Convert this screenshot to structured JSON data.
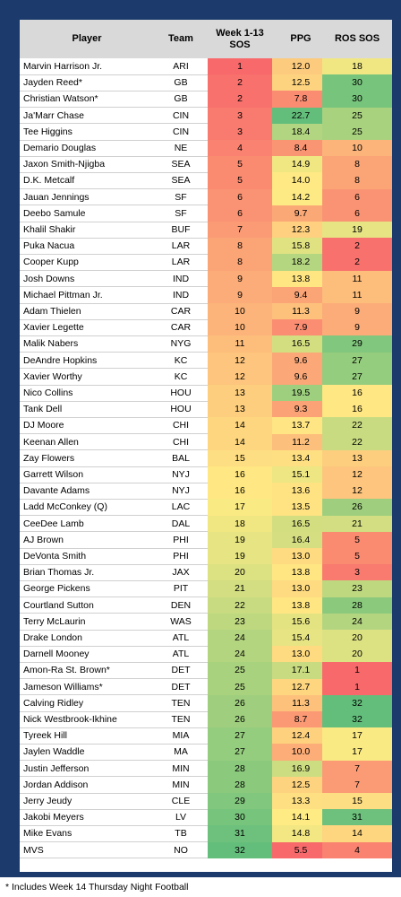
{
  "table": {
    "headers": {
      "player": "Player",
      "team": "Team",
      "sos_line1": "Week 1-13",
      "sos_line2": "SOS",
      "ppg": "PPG",
      "ros": "ROS SOS"
    }
  },
  "footnote": "* Includes Week 14 Thursday Night Football",
  "chart_data": {
    "type": "table",
    "columns": [
      "Player",
      "Team",
      "Week 1-13 SOS",
      "PPG",
      "ROS SOS"
    ],
    "rows": [
      [
        "Marvin Harrison Jr.",
        "ARI",
        "1",
        "12.0",
        "18"
      ],
      [
        "Jayden Reed*",
        "GB",
        "2",
        "12.5",
        "30"
      ],
      [
        "Christian Watson*",
        "GB",
        "2",
        "7.8",
        "30"
      ],
      [
        "Ja'Marr Chase",
        "CIN",
        "3",
        "22.7",
        "25"
      ],
      [
        "Tee Higgins",
        "CIN",
        "3",
        "18.4",
        "25"
      ],
      [
        "Demario Douglas",
        "NE",
        "4",
        "8.4",
        "10"
      ],
      [
        "Jaxon Smith-Njigba",
        "SEA",
        "5",
        "14.9",
        "8"
      ],
      [
        "D.K. Metcalf",
        "SEA",
        "5",
        "14.0",
        "8"
      ],
      [
        "Jauan Jennings",
        "SF",
        "6",
        "14.2",
        "6"
      ],
      [
        "Deebo Samule",
        "SF",
        "6",
        "9.7",
        "6"
      ],
      [
        "Khalil Shakir",
        "BUF",
        "7",
        "12.3",
        "19"
      ],
      [
        "Puka Nacua",
        "LAR",
        "8",
        "15.8",
        "2"
      ],
      [
        "Cooper Kupp",
        "LAR",
        "8",
        "18.2",
        "2"
      ],
      [
        "Josh Downs",
        "IND",
        "9",
        "13.8",
        "11"
      ],
      [
        "Michael Pittman Jr.",
        "IND",
        "9",
        "9.4",
        "11"
      ],
      [
        "Adam Thielen",
        "CAR",
        "10",
        "11.3",
        "9"
      ],
      [
        "Xavier Legette",
        "CAR",
        "10",
        "7.9",
        "9"
      ],
      [
        "Malik Nabers",
        "NYG",
        "11",
        "16.5",
        "29"
      ],
      [
        "DeAndre Hopkins",
        "KC",
        "12",
        "9.6",
        "27"
      ],
      [
        "Xavier Worthy",
        "KC",
        "12",
        "9.6",
        "27"
      ],
      [
        "Nico Collins",
        "HOU",
        "13",
        "19.5",
        "16"
      ],
      [
        "Tank Dell",
        "HOU",
        "13",
        "9.3",
        "16"
      ],
      [
        "DJ Moore",
        "CHI",
        "14",
        "13.7",
        "22"
      ],
      [
        "Keenan Allen",
        "CHI",
        "14",
        "11.2",
        "22"
      ],
      [
        "Zay Flowers",
        "BAL",
        "15",
        "13.4",
        "13"
      ],
      [
        "Garrett Wilson",
        "NYJ",
        "16",
        "15.1",
        "12"
      ],
      [
        "Davante Adams",
        "NYJ",
        "16",
        "13.6",
        "12"
      ],
      [
        "Ladd McConkey (Q)",
        "LAC",
        "17",
        "13.5",
        "26"
      ],
      [
        "CeeDee Lamb",
        "DAL",
        "18",
        "16.5",
        "21"
      ],
      [
        "AJ Brown",
        "PHI",
        "19",
        "16.4",
        "5"
      ],
      [
        "DeVonta Smith",
        "PHI",
        "19",
        "13.0",
        "5"
      ],
      [
        "Brian Thomas Jr.",
        "JAX",
        "20",
        "13.8",
        "3"
      ],
      [
        "George Pickens",
        "PIT",
        "21",
        "13.0",
        "23"
      ],
      [
        "Courtland Sutton",
        "DEN",
        "22",
        "13.8",
        "28"
      ],
      [
        "Terry McLaurin",
        "WAS",
        "23",
        "15.6",
        "24"
      ],
      [
        "Drake London",
        "ATL",
        "24",
        "15.4",
        "20"
      ],
      [
        "Darnell Mooney",
        "ATL",
        "24",
        "13.0",
        "20"
      ],
      [
        "Amon-Ra St. Brown*",
        "DET",
        "25",
        "17.1",
        "1"
      ],
      [
        "Jameson Williams*",
        "DET",
        "25",
        "12.7",
        "1"
      ],
      [
        "Calving Ridley",
        "TEN",
        "26",
        "11.3",
        "32"
      ],
      [
        "Nick Westbrook-Ikhine",
        "TEN",
        "26",
        "8.7",
        "32"
      ],
      [
        "Tyreek Hill",
        "MIA",
        "27",
        "12.4",
        "17"
      ],
      [
        "Jaylen Waddle",
        "MA",
        "27",
        "10.0",
        "17"
      ],
      [
        "Justin Jefferson",
        "MIN",
        "28",
        "16.9",
        "7"
      ],
      [
        "Jordan Addison",
        "MIN",
        "28",
        "12.5",
        "7"
      ],
      [
        "Jerry Jeudy",
        "CLE",
        "29",
        "13.3",
        "15"
      ],
      [
        "Jakobi Meyers",
        "LV",
        "30",
        "14.1",
        "31"
      ],
      [
        "Mike Evans",
        "TB",
        "31",
        "14.8",
        "14"
      ],
      [
        "MVS",
        "NO",
        "32",
        "5.5",
        "4"
      ]
    ],
    "color_scale": {
      "low": "#f8696b",
      "mid": "#ffeb84",
      "high": "#63be7b"
    }
  }
}
